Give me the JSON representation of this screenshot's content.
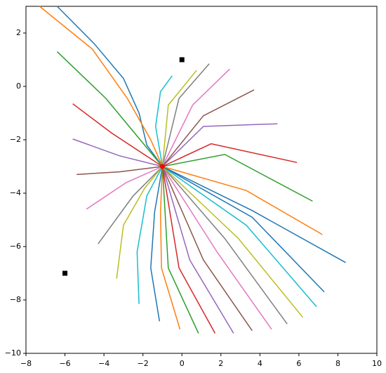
{
  "chart_data": {
    "type": "line",
    "xlim": [
      -8,
      10
    ],
    "ylim": [
      -10,
      3
    ],
    "xticks": [
      {
        "value": -8,
        "label": "−8"
      },
      {
        "value": -6,
        "label": "−6"
      },
      {
        "value": -4,
        "label": "−4"
      },
      {
        "value": -2,
        "label": "−2"
      },
      0,
      2,
      4,
      6,
      8,
      10
    ],
    "yticks": [
      {
        "value": -10,
        "label": "−10"
      },
      {
        "value": -8,
        "label": "−8"
      },
      {
        "value": -6,
        "label": "−6"
      },
      {
        "value": -4,
        "label": "−4"
      },
      {
        "value": -2,
        "label": "−2"
      },
      0,
      2
    ],
    "grid": false,
    "series": [
      {
        "color": "#1f77b4",
        "x": [
          -6.4,
          -4.5,
          -3,
          -2.2,
          -1.8,
          -1
        ],
        "values": [
          3,
          1.6,
          0.3,
          -1,
          -2.2,
          -3
        ]
      },
      {
        "color": "#ff7f0e",
        "x": [
          -7.3,
          -4.6,
          -2.8,
          -1.6,
          -1
        ],
        "values": [
          3,
          1.4,
          -0.45,
          -2,
          -3
        ]
      },
      {
        "color": "#2ca02c",
        "x": [
          -6.4,
          -3.9,
          -1.8,
          -1
        ],
        "values": [
          1.3,
          -0.45,
          -2.3,
          -3
        ]
      },
      {
        "color": "#d62728",
        "x": [
          -5.6,
          -3.6,
          -1
        ],
        "values": [
          -0.65,
          -1.75,
          -3
        ]
      },
      {
        "color": "#9467bd",
        "x": [
          -5.6,
          -3.2,
          -1
        ],
        "values": [
          -1.97,
          -2.6,
          -3
        ]
      },
      {
        "color": "#8c564b",
        "x": [
          -5.4,
          -3.2,
          -1
        ],
        "values": [
          -3.3,
          -3.2,
          -3
        ]
      },
      {
        "color": "#e377c2",
        "x": [
          -4.9,
          -2.85,
          -1
        ],
        "values": [
          -4.6,
          -3.6,
          -3
        ]
      },
      {
        "color": "#7f7f7f",
        "x": [
          -4.3,
          -2.5,
          -1
        ],
        "values": [
          -5.9,
          -4.1,
          -3
        ]
      },
      {
        "color": "#bcbd22",
        "x": [
          -3.35,
          -3.0,
          -1.9,
          -1
        ],
        "values": [
          -7.2,
          -5.2,
          -3.8,
          -3
        ]
      },
      {
        "color": "#17becf",
        "x": [
          -2.2,
          -2.3,
          -1.8,
          -1
        ],
        "values": [
          -8.15,
          -6.2,
          -4.1,
          -3
        ]
      },
      {
        "color": "#1f77b4",
        "x": [
          -1.15,
          -1.6,
          -1.4,
          -1
        ],
        "values": [
          -8.8,
          -6.8,
          -4.7,
          -3
        ]
      },
      {
        "color": "#ff7f0e",
        "x": [
          -0.1,
          -1.05,
          -1.1,
          -1
        ],
        "values": [
          -9.1,
          -6.8,
          -4.7,
          -3
        ]
      },
      {
        "color": "#2ca02c",
        "x": [
          0.85,
          -0.7,
          -1
        ],
        "values": [
          -9.25,
          -6.8,
          -3
        ]
      },
      {
        "color": "#d62728",
        "x": [
          1.7,
          -0.15,
          -1
        ],
        "values": [
          -9.25,
          -6.8,
          -3
        ]
      },
      {
        "color": "#9467bd",
        "x": [
          2.65,
          0.4,
          -1
        ],
        "values": [
          -9.25,
          -6.5,
          -3
        ]
      },
      {
        "color": "#8c564b",
        "x": [
          3.6,
          1.1,
          -1
        ],
        "values": [
          -9.15,
          -6.5,
          -3
        ]
      },
      {
        "color": "#e377c2",
        "x": [
          4.6,
          1.8,
          -1
        ],
        "values": [
          -9.1,
          -6.2,
          -3
        ]
      },
      {
        "color": "#7f7f7f",
        "x": [
          5.4,
          2.2,
          -1
        ],
        "values": [
          -8.9,
          -5.7,
          -3
        ]
      },
      {
        "color": "#bcbd22",
        "x": [
          6.2,
          2.9,
          -1
        ],
        "values": [
          -8.65,
          -5.7,
          -3
        ]
      },
      {
        "color": "#17becf",
        "x": [
          6.9,
          3.3,
          -1
        ],
        "values": [
          -8.25,
          -5.2,
          -3
        ]
      },
      {
        "color": "#1f77b4",
        "x": [
          7.3,
          3.6,
          -1
        ],
        "values": [
          -7.7,
          -4.9,
          -3
        ]
      },
      {
        "color": "#1f77b4",
        "x": [
          8.4,
          3.6,
          -1
        ],
        "values": [
          -6.6,
          -4.65,
          -3
        ]
      },
      {
        "color": "#ff7f0e",
        "x": [
          7.2,
          3.3,
          -1
        ],
        "values": [
          -5.55,
          -3.9,
          -3
        ]
      },
      {
        "color": "#2ca02c",
        "x": [
          6.7,
          2.2,
          -1
        ],
        "values": [
          -4.3,
          -2.55,
          -3
        ]
      },
      {
        "color": "#d62728",
        "x": [
          5.9,
          1.5,
          -1
        ],
        "values": [
          -2.85,
          -2.15,
          -3
        ]
      },
      {
        "color": "#9467bd",
        "x": [
          4.9,
          1.1,
          -1
        ],
        "values": [
          -1.4,
          -1.5,
          -3
        ]
      },
      {
        "color": "#8c564b",
        "x": [
          3.7,
          1.1,
          -1
        ],
        "values": [
          -0.13,
          -1.1,
          -3
        ]
      },
      {
        "color": "#e377c2",
        "x": [
          2.45,
          0.55,
          -1
        ],
        "values": [
          0.65,
          -0.7,
          -3
        ]
      },
      {
        "color": "#7f7f7f",
        "x": [
          1.4,
          -0.15,
          -1
        ],
        "values": [
          0.85,
          -0.45,
          -3
        ]
      },
      {
        "color": "#bcbd22",
        "x": [
          0.75,
          -0.7,
          -1
        ],
        "values": [
          0.6,
          -0.7,
          -3
        ]
      },
      {
        "color": "#17becf",
        "x": [
          -0.5,
          -1.1,
          -1.35,
          -1
        ],
        "values": [
          0.4,
          -0.2,
          -1.5,
          -3
        ]
      },
      {
        "color": "#000000",
        "marker": "square",
        "x": [
          0,
          -6
        ],
        "values": [
          1,
          -7
        ]
      },
      {
        "color": "#ff0000",
        "marker": "circle",
        "x": [
          -1
        ],
        "values": [
          -3
        ]
      }
    ]
  }
}
